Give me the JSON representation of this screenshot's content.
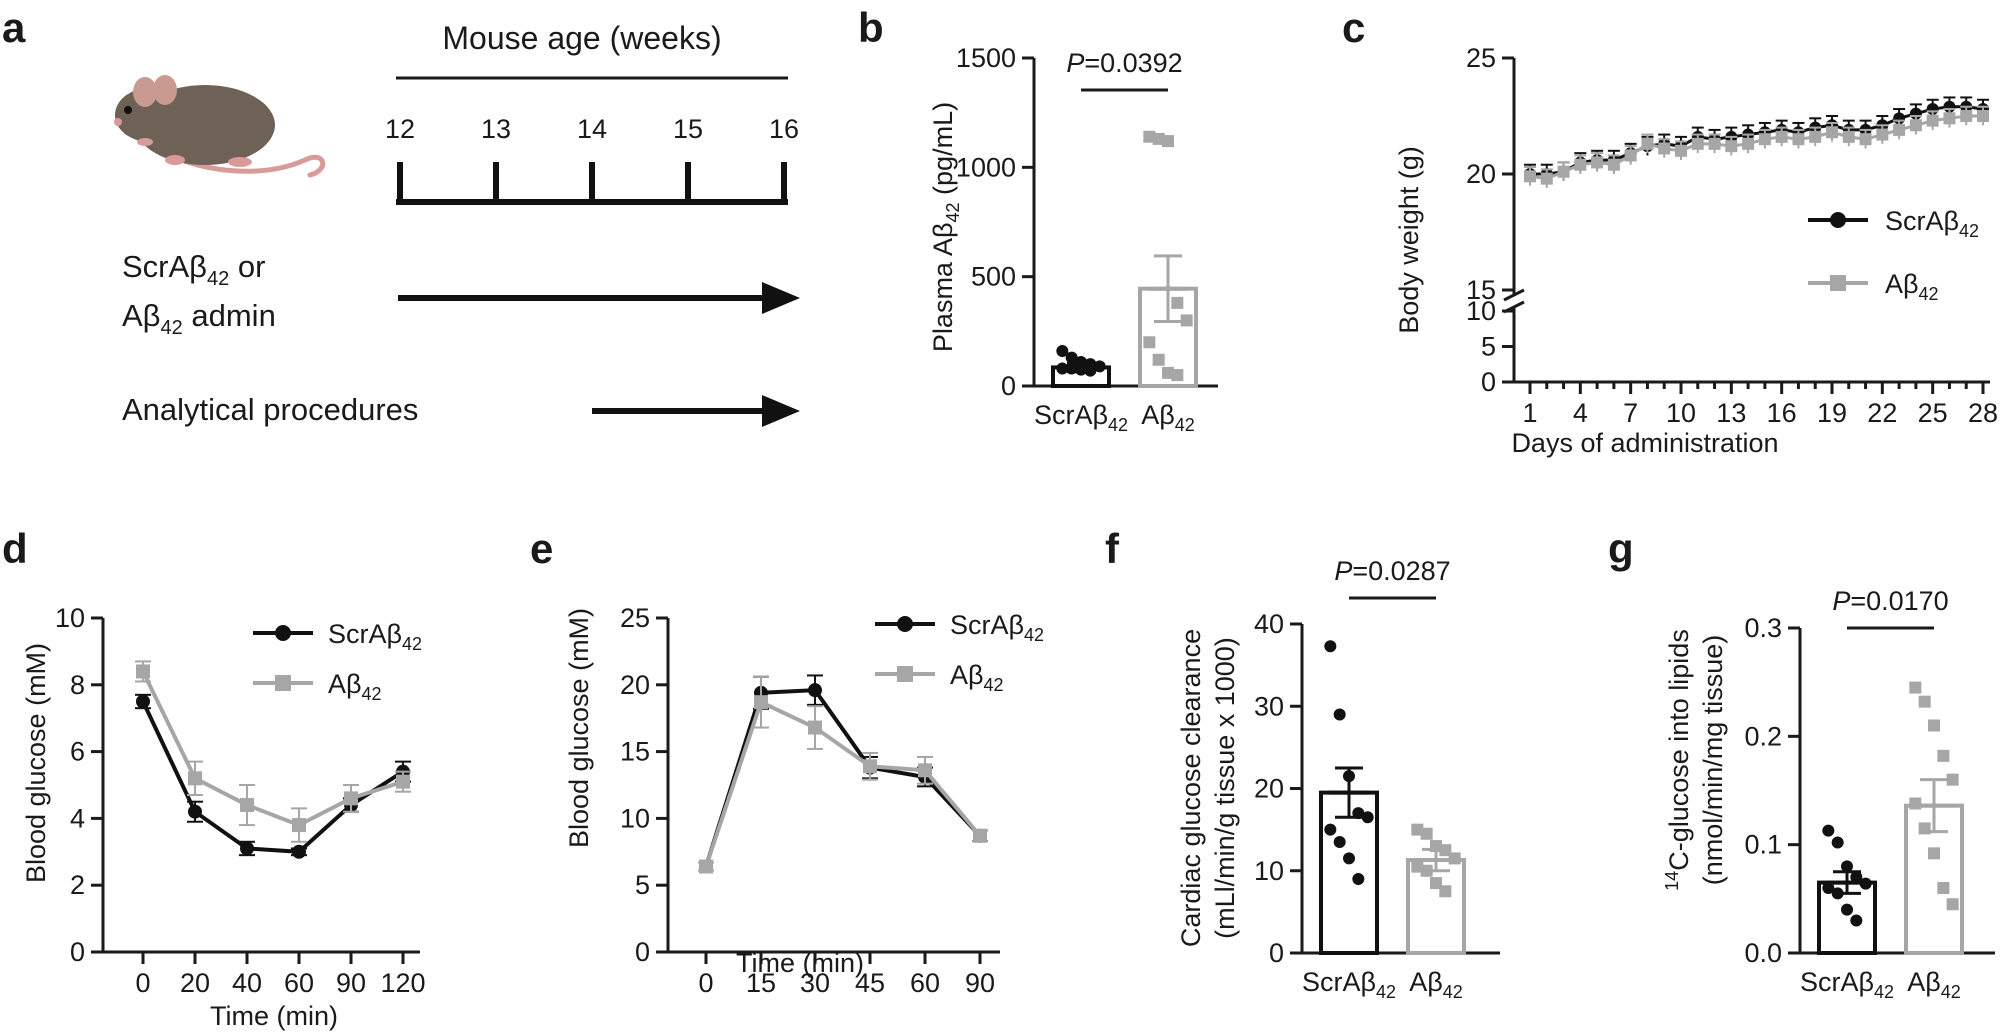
{
  "colors": {
    "scr": "#111111",
    "ab": "#a6a6a6"
  },
  "panels": {
    "a": {
      "label": "a",
      "timeline_title": "Mouse age (weeks)",
      "ages": [
        "12",
        "13",
        "14",
        "15",
        "16"
      ],
      "row1_line1_pre": "ScrAβ",
      "row1_line1_sub": "42",
      "row1_line1_post": " or",
      "row1_line2_pre": "Aβ",
      "row1_line2_sub": "42",
      "row1_line2_post": " admin",
      "row2": "Analytical procedures",
      "icon": "mouse-icon"
    },
    "b": {
      "label": "b"
    },
    "c": {
      "label": "c"
    },
    "d": {
      "label": "d"
    },
    "e": {
      "label": "e"
    },
    "f": {
      "label": "f"
    },
    "g": {
      "label": "g"
    }
  },
  "chart_data": [
    {
      "id": "b",
      "type": "bar",
      "title": "",
      "ylabel_pre": "Plasma Aβ",
      "ylabel_sub": "42",
      "ylabel_post": "  (pg/mL)",
      "ylim": [
        0,
        1500
      ],
      "yticks": [
        "0",
        "500",
        "1000",
        "1500"
      ],
      "p_label_italic": "P",
      "p_label_rest": "=0.0392",
      "categories": [
        {
          "pre": "ScrAβ",
          "sub": "42"
        },
        {
          "pre": "Aβ",
          "sub": "42"
        }
      ],
      "means": [
        85,
        445
      ],
      "sem": [
        20,
        150
      ],
      "points": [
        [
          160,
          130,
          110,
          100,
          90,
          80,
          80,
          75,
          70
        ],
        [
          1140,
          1130,
          1120,
          380,
          300,
          200,
          120,
          60,
          50
        ]
      ]
    },
    {
      "id": "c",
      "type": "line",
      "title": "",
      "xlabel": "Days of administration",
      "ylabel": "Body weight (g)",
      "xticks": [
        "1",
        "4",
        "7",
        "10",
        "13",
        "16",
        "19",
        "22",
        "25",
        "28"
      ],
      "yticks_low": [
        "0",
        "5",
        "10"
      ],
      "yticks_high": [
        "15",
        "20",
        "25"
      ],
      "series": [
        {
          "name_pre": "ScrAβ",
          "name_sub": "42",
          "x": [
            1,
            2,
            3,
            4,
            5,
            6,
            7,
            8,
            9,
            10,
            11,
            12,
            13,
            14,
            15,
            16,
            17,
            18,
            19,
            20,
            21,
            22,
            23,
            24,
            25,
            26,
            27,
            28
          ],
          "values": [
            20.0,
            20.0,
            20.1,
            20.5,
            20.6,
            20.6,
            20.9,
            21.2,
            21.3,
            21.2,
            21.6,
            21.5,
            21.6,
            21.7,
            21.8,
            21.9,
            21.8,
            22.0,
            22.1,
            21.9,
            21.9,
            22.1,
            22.4,
            22.6,
            22.8,
            22.9,
            22.9,
            22.8
          ]
        },
        {
          "name_pre": "Aβ",
          "name_sub": "42",
          "x": [
            1,
            2,
            3,
            4,
            5,
            6,
            7,
            8,
            9,
            10,
            11,
            12,
            13,
            14,
            15,
            16,
            17,
            18,
            19,
            20,
            21,
            22,
            23,
            24,
            25,
            26,
            27,
            28
          ],
          "values": [
            19.9,
            19.8,
            20.1,
            20.4,
            20.5,
            20.4,
            20.8,
            21.3,
            21.1,
            21.0,
            21.3,
            21.3,
            21.2,
            21.3,
            21.5,
            21.6,
            21.5,
            21.6,
            21.8,
            21.6,
            21.5,
            21.7,
            21.9,
            22.1,
            22.3,
            22.4,
            22.5,
            22.5
          ]
        }
      ],
      "sem": 0.4,
      "legend": "right"
    },
    {
      "id": "d",
      "type": "line",
      "title": "",
      "xlabel": "Time (min)",
      "ylabel": "Blood glucose (mM)",
      "categories": [
        "0",
        "20",
        "40",
        "60",
        "90",
        "120"
      ],
      "ylim": [
        0,
        10
      ],
      "yticks": [
        "0",
        "2",
        "4",
        "6",
        "8",
        "10"
      ],
      "series": [
        {
          "name_pre": "ScrAβ",
          "name_sub": "42",
          "values": [
            7.5,
            4.2,
            3.1,
            3.0,
            4.4,
            5.4
          ],
          "sem": [
            0.2,
            0.3,
            0.2,
            0.1,
            0.2,
            0.3
          ]
        },
        {
          "name_pre": "Aβ",
          "name_sub": "42",
          "values": [
            8.4,
            5.2,
            4.4,
            3.8,
            4.6,
            5.1
          ],
          "sem": [
            0.3,
            0.5,
            0.6,
            0.5,
            0.4,
            0.3
          ]
        }
      ],
      "legend": "top-right"
    },
    {
      "id": "e",
      "type": "line",
      "title": "",
      "xlabel": "Time (min)",
      "ylabel": "Blood glucose (mM)",
      "categories": [
        "0",
        "15",
        "30",
        "45",
        "60",
        "90"
      ],
      "ylim": [
        0,
        25
      ],
      "yticks": [
        "0",
        "5",
        "10",
        "15",
        "20",
        "25"
      ],
      "series": [
        {
          "name_pre": "ScrAβ",
          "name_sub": "42",
          "values": [
            6.4,
            19.4,
            19.6,
            13.8,
            13.1,
            8.7
          ],
          "sem": [
            0.3,
            1.2,
            1.1,
            0.8,
            0.7,
            0.4
          ]
        },
        {
          "name_pre": "Aβ",
          "name_sub": "42",
          "values": [
            6.4,
            18.7,
            16.8,
            13.9,
            13.6,
            8.7
          ],
          "sem": [
            0.3,
            1.9,
            1.6,
            1.0,
            1.0,
            0.4
          ]
        }
      ],
      "legend": "top-right"
    },
    {
      "id": "f",
      "type": "bar",
      "title": "",
      "ylabel_line1": "Cardiac glucose clearance",
      "ylabel_line2": "(mLl/min/g tissue x 1000)",
      "ylim": [
        0,
        40
      ],
      "yticks": [
        "0",
        "10",
        "20",
        "30",
        "40"
      ],
      "p_label_italic": "P",
      "p_label_rest": "=0.0287",
      "categories": [
        {
          "pre": "ScrAβ",
          "sub": "42"
        },
        {
          "pre": "Aβ",
          "sub": "42"
        }
      ],
      "means": [
        19.5,
        11.3
      ],
      "sem": [
        3.0,
        1.3
      ],
      "points": [
        [
          37.3,
          29.0,
          21.5,
          17.0,
          16.5,
          15.0,
          13.5,
          11.5,
          9.0
        ],
        [
          15.0,
          14.5,
          13.0,
          12.5,
          11.5,
          10.5,
          10.0,
          8.5,
          7.5
        ]
      ]
    },
    {
      "id": "g",
      "type": "bar",
      "title": "",
      "ylabel_sup": "14",
      "ylabel_line1": "C-glucose into lipids",
      "ylabel_line2": "(nmol/min/mg tissue)",
      "ylim": [
        0,
        0.3
      ],
      "yticks": [
        "0.0",
        "0.1",
        "0.2",
        "0.3"
      ],
      "p_label_italic": "P",
      "p_label_rest": "=0.0170",
      "categories": [
        {
          "pre": "ScrAβ",
          "sub": "42"
        },
        {
          "pre": "Aβ",
          "sub": "42"
        }
      ],
      "means": [
        0.065,
        0.136
      ],
      "sem": [
        0.01,
        0.024
      ],
      "points": [
        [
          0.113,
          0.102,
          0.08,
          0.07,
          0.064,
          0.06,
          0.055,
          0.04,
          0.03
        ],
        [
          0.245,
          0.232,
          0.21,
          0.182,
          0.16,
          0.138,
          0.115,
          0.092,
          0.06,
          0.045
        ]
      ]
    }
  ]
}
